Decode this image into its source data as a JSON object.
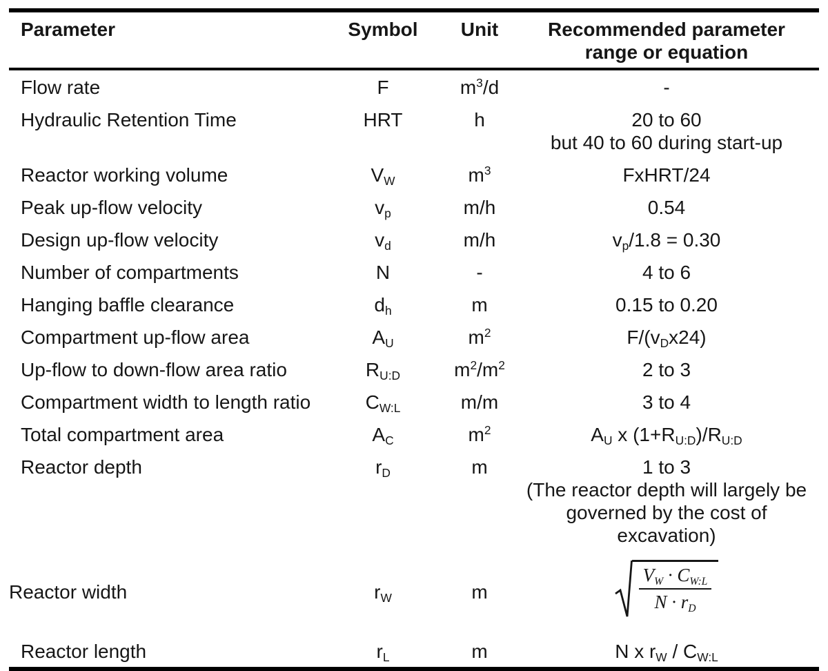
{
  "table": {
    "columns": [
      {
        "label": "Parameter"
      },
      {
        "label": "Symbol"
      },
      {
        "label": "Unit"
      },
      {
        "label": "Recommended parameter\nrange or equation"
      }
    ],
    "rows": [
      {
        "parameter": "Flow rate",
        "symbol": "F",
        "unit": "m^3^/d",
        "value": "-"
      },
      {
        "parameter": "Hydraulic Retention Time",
        "symbol": "HRT",
        "unit": "h",
        "value": "20 to 60\nbut 40 to 60 during start-up"
      },
      {
        "parameter": "Reactor working volume",
        "symbol": "V~W~",
        "unit": "m^3^",
        "value": "FxHRT/24"
      },
      {
        "parameter": "Peak up-flow velocity",
        "symbol": "v~p~",
        "unit": "m/h",
        "value": "0.54"
      },
      {
        "parameter": "Design up-flow velocity",
        "symbol": "v~d~",
        "unit": "m/h",
        "value": "v~p~/1.8 = 0.30"
      },
      {
        "parameter": "Number of compartments",
        "symbol": "N",
        "unit": "-",
        "value": "4 to 6"
      },
      {
        "parameter": "Hanging baffle clearance",
        "symbol": "d~h~",
        "unit": "m",
        "value": "0.15 to 0.20"
      },
      {
        "parameter": "Compartment up-flow area",
        "symbol": "A~U~",
        "unit": "m^2^",
        "value": "F/(v~D~x24)"
      },
      {
        "parameter": "Up-flow to down-flow area ratio",
        "symbol": "R~U:D~",
        "unit": "m^2^/m^2^",
        "value": "2 to 3"
      },
      {
        "parameter": "Compartment width to length ratio",
        "symbol": "C~W:L~",
        "unit": "m/m",
        "value": "3 to 4"
      },
      {
        "parameter": "Total compartment area",
        "symbol": "A~C~",
        "unit": "m^2^",
        "value": "A~U~ x (1+R~U:D~)/R~U:D~"
      },
      {
        "parameter": "Reactor depth",
        "symbol": "r~D~",
        "unit": "m",
        "value": "1 to 3\n(The reactor depth will largely be\ngoverned by the cost of excavation)"
      },
      {
        "parameter": "Reactor width",
        "symbol": "r~W~",
        "unit": "m",
        "formula": {
          "type": "square-root-fraction",
          "numerator": "V~W~ · C~W:L~",
          "denominator": "N · r~D~"
        }
      },
      {
        "parameter": "Reactor length",
        "symbol": "r~L~",
        "unit": "m",
        "value": "N x r~W~ / C~W:L~"
      }
    ]
  }
}
